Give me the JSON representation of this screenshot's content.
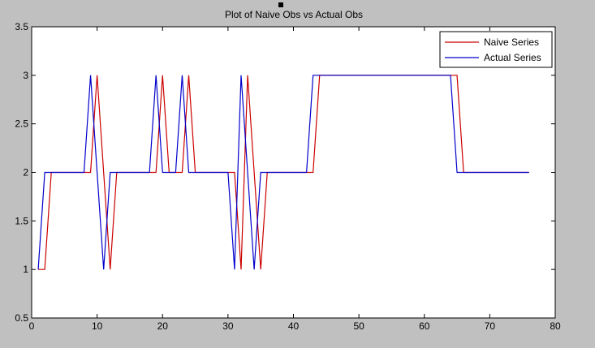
{
  "chart_data": {
    "type": "line",
    "title": "Plot of Naive Obs vs Actual Obs",
    "xlabel": "",
    "ylabel": "",
    "xlim": [
      0,
      80
    ],
    "ylim": [
      0.5,
      3.5
    ],
    "xticks": [
      0,
      10,
      20,
      30,
      40,
      50,
      60,
      70,
      80
    ],
    "yticks": [
      0.5,
      1,
      1.5,
      2,
      2.5,
      3,
      3.5
    ],
    "xtick_labels": [
      "0",
      "10",
      "20",
      "30",
      "40",
      "50",
      "60",
      "70",
      "80"
    ],
    "ytick_labels": [
      "0.5",
      "1",
      "1.5",
      "2",
      "2.5",
      "3",
      "3.5"
    ],
    "grid": false,
    "legend_position": "top-right",
    "series": [
      {
        "name": "Naive Series",
        "color": "#cc0000",
        "x": [
          1,
          2,
          3,
          4,
          5,
          6,
          7,
          8,
          9,
          10,
          11,
          12,
          13,
          14,
          15,
          16,
          17,
          18,
          19,
          20,
          21,
          22,
          23,
          24,
          25,
          26,
          27,
          28,
          29,
          30,
          31,
          32,
          33,
          34,
          35,
          36,
          37,
          38,
          39,
          40,
          41,
          42,
          43,
          44,
          45,
          46,
          47,
          48,
          49,
          50,
          51,
          52,
          53,
          54,
          55,
          56,
          57,
          58,
          59,
          60,
          61,
          62,
          63,
          64,
          65,
          66,
          67,
          68,
          69,
          70,
          71,
          72,
          73,
          74,
          75,
          76
        ],
        "y": [
          1,
          1,
          2,
          2,
          2,
          2,
          2,
          2,
          2,
          3,
          2,
          1,
          2,
          2,
          2,
          2,
          2,
          2,
          2,
          3,
          2,
          2,
          2,
          3,
          2,
          2,
          2,
          2,
          2,
          2,
          2,
          1,
          3,
          2,
          1,
          2,
          2,
          2,
          2,
          2,
          2,
          2,
          2,
          3,
          3,
          3,
          3,
          3,
          3,
          3,
          3,
          3,
          3,
          3,
          3,
          3,
          3,
          3,
          3,
          3,
          3,
          3,
          3,
          3,
          3,
          2,
          2,
          2,
          2,
          2,
          2,
          2,
          2,
          2,
          2,
          2
        ]
      },
      {
        "name": "Actual Series",
        "color": "#0000cc",
        "x": [
          1,
          2,
          3,
          4,
          5,
          6,
          7,
          8,
          9,
          10,
          11,
          12,
          13,
          14,
          15,
          16,
          17,
          18,
          19,
          20,
          21,
          22,
          23,
          24,
          25,
          26,
          27,
          28,
          29,
          30,
          31,
          32,
          33,
          34,
          35,
          36,
          37,
          38,
          39,
          40,
          41,
          42,
          43,
          44,
          45,
          46,
          47,
          48,
          49,
          50,
          51,
          52,
          53,
          54,
          55,
          56,
          57,
          58,
          59,
          60,
          61,
          62,
          63,
          64,
          65,
          66,
          67,
          68,
          69,
          70,
          71,
          72,
          73,
          74,
          75,
          76
        ],
        "y": [
          1,
          2,
          2,
          2,
          2,
          2,
          2,
          2,
          3,
          2,
          1,
          2,
          2,
          2,
          2,
          2,
          2,
          2,
          3,
          2,
          2,
          2,
          3,
          2,
          2,
          2,
          2,
          2,
          2,
          2,
          1,
          3,
          2,
          1,
          2,
          2,
          2,
          2,
          2,
          2,
          2,
          2,
          3,
          3,
          3,
          3,
          3,
          3,
          3,
          3,
          3,
          3,
          3,
          3,
          3,
          3,
          3,
          3,
          3,
          3,
          3,
          3,
          3,
          3,
          2,
          2,
          2,
          2,
          2,
          2,
          2,
          2,
          2,
          2,
          2,
          2
        ]
      }
    ]
  }
}
